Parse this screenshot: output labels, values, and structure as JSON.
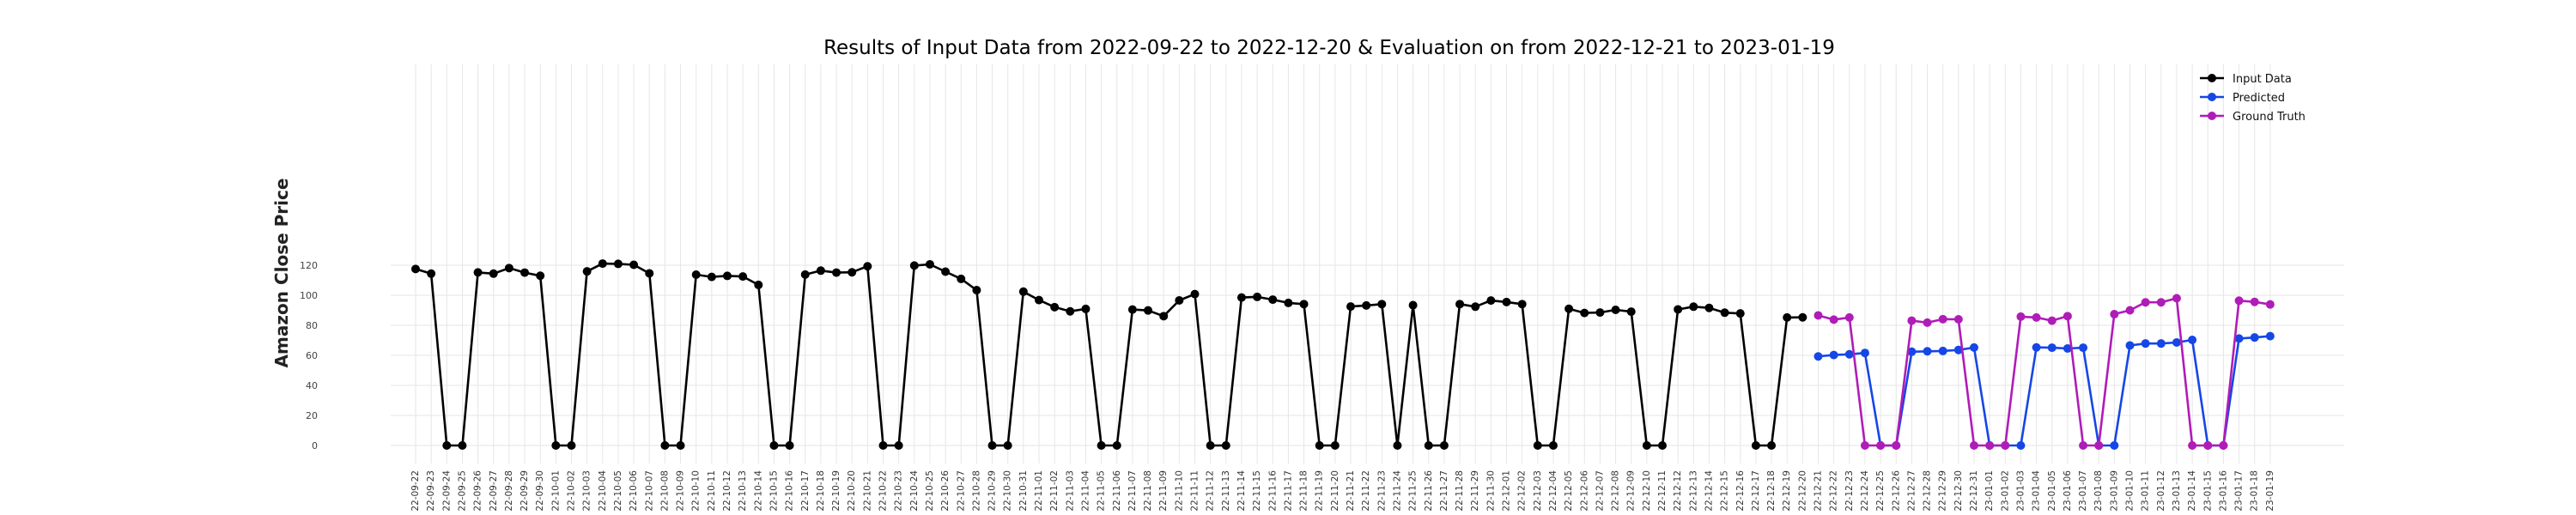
{
  "chart_data": {
    "type": "line",
    "title": "Results of Input Data from 2022-09-22 to 2022-12-20 & Evaluation on from 2022-12-21 to 2023-01-19",
    "xlabel": "",
    "ylabel": "Amazon Close Price",
    "ylim": [
      -8,
      128
    ],
    "yticks": [
      0,
      20,
      40,
      60,
      80,
      100,
      120
    ],
    "grid": true,
    "legend_position": "top-right",
    "colors": {
      "input": "#000000",
      "predicted": "#1546e6",
      "truth": "#b01cb8"
    },
    "series": [
      {
        "name": "Input Data",
        "color": "#000000",
        "x": [
          "2022-09-22",
          "2022-09-23",
          "2022-09-24",
          "2022-09-25",
          "2022-09-26",
          "2022-09-27",
          "2022-09-28",
          "2022-09-29",
          "2022-09-30",
          "2022-10-01",
          "2022-10-02",
          "2022-10-03",
          "2022-10-04",
          "2022-10-05",
          "2022-10-06",
          "2022-10-07",
          "2022-10-08",
          "2022-10-09",
          "2022-10-10",
          "2022-10-11",
          "2022-10-12",
          "2022-10-13",
          "2022-10-14",
          "2022-10-15",
          "2022-10-16",
          "2022-10-17",
          "2022-10-18",
          "2022-10-19",
          "2022-10-20",
          "2022-10-21",
          "2022-10-22",
          "2022-10-23",
          "2022-10-24",
          "2022-10-25",
          "2022-10-26",
          "2022-10-27",
          "2022-10-28",
          "2022-10-29",
          "2022-10-30",
          "2022-10-31",
          "2022-11-01",
          "2022-11-02",
          "2022-11-03",
          "2022-11-04",
          "2022-11-05",
          "2022-11-06",
          "2022-11-07",
          "2022-11-08",
          "2022-11-09",
          "2022-11-10",
          "2022-11-11",
          "2022-11-12",
          "2022-11-13",
          "2022-11-14",
          "2022-11-15",
          "2022-11-16",
          "2022-11-17",
          "2022-11-18",
          "2022-11-19",
          "2022-11-20",
          "2022-11-21",
          "2022-11-22",
          "2022-11-23",
          "2022-11-24",
          "2022-11-25",
          "2022-11-26",
          "2022-11-27",
          "2022-11-28",
          "2022-11-29",
          "2022-11-30",
          "2022-12-01",
          "2022-12-02",
          "2022-12-03",
          "2022-12-04",
          "2022-12-05",
          "2022-12-06",
          "2022-12-07",
          "2022-12-08",
          "2022-12-09",
          "2022-12-10",
          "2022-12-11",
          "2022-12-12",
          "2022-12-13",
          "2022-12-14",
          "2022-12-15",
          "2022-12-16",
          "2022-12-17",
          "2022-12-18",
          "2022-12-19",
          "2022-12-20"
        ],
        "values": [
          117.5,
          114.4,
          0,
          0,
          115.2,
          114.4,
          118.1,
          115.1,
          113.0,
          0,
          0,
          115.9,
          121.1,
          120.9,
          120.3,
          114.6,
          0,
          0,
          113.7,
          112.2,
          112.9,
          112.5,
          106.9,
          0,
          0,
          113.8,
          116.4,
          115.1,
          115.3,
          119.3,
          0,
          0,
          119.8,
          120.6,
          115.7,
          110.9,
          103.4,
          0,
          0,
          102.4,
          96.8,
          92.1,
          89.3,
          90.9,
          0,
          0,
          90.5,
          89.9,
          86.1,
          96.6,
          100.8,
          0,
          0,
          98.5,
          98.9,
          97.1,
          94.9,
          94.1,
          0,
          0,
          92.5,
          93.2,
          94.1,
          0,
          93.4,
          0,
          0,
          94.1,
          92.4,
          96.5,
          95.5,
          94.1,
          0,
          0,
          91.0,
          88.2,
          88.5,
          90.3,
          89.1,
          0,
          0,
          90.6,
          92.4,
          91.6,
          88.4,
          87.9,
          0,
          0,
          85.2,
          85.3
        ]
      },
      {
        "name": "Predicted",
        "color": "#1546e6",
        "x": [
          "2022-12-21",
          "2022-12-22",
          "2022-12-23",
          "2022-12-24",
          "2022-12-25",
          "2022-12-26",
          "2022-12-27",
          "2022-12-28",
          "2022-12-29",
          "2022-12-30",
          "2022-12-31",
          "2023-01-01",
          "2023-01-02",
          "2023-01-03",
          "2023-01-04",
          "2023-01-05",
          "2023-01-06",
          "2023-01-07",
          "2023-01-08",
          "2023-01-09",
          "2023-01-10",
          "2023-01-11",
          "2023-01-12",
          "2023-01-13",
          "2023-01-14",
          "2023-01-15",
          "2023-01-16",
          "2023-01-17",
          "2023-01-18",
          "2023-01-19"
        ],
        "values": [
          59.3,
          60.2,
          60.7,
          61.6,
          0,
          0,
          62.4,
          62.7,
          62.9,
          63.6,
          65.2,
          0,
          0,
          0,
          65.3,
          65.1,
          64.6,
          65.1,
          0,
          0,
          66.6,
          67.9,
          67.9,
          68.6,
          70.3,
          0,
          0,
          71.2,
          71.9,
          72.8
        ]
      },
      {
        "name": "Ground Truth",
        "color": "#b01cb8",
        "x": [
          "2022-12-21",
          "2022-12-22",
          "2022-12-23",
          "2022-12-24",
          "2022-12-25",
          "2022-12-26",
          "2022-12-27",
          "2022-12-28",
          "2022-12-29",
          "2022-12-30",
          "2022-12-31",
          "2023-01-01",
          "2023-01-02",
          "2023-01-03",
          "2023-01-04",
          "2023-01-05",
          "2023-01-06",
          "2023-01-07",
          "2023-01-08",
          "2023-01-09",
          "2023-01-10",
          "2023-01-11",
          "2023-01-12",
          "2023-01-13",
          "2023-01-14",
          "2023-01-15",
          "2023-01-16",
          "2023-01-17",
          "2023-01-18",
          "2023-01-19"
        ],
        "values": [
          86.6,
          83.8,
          85.2,
          0,
          0,
          0,
          83.1,
          81.8,
          84.1,
          84.0,
          0,
          0,
          0,
          85.8,
          85.2,
          83.1,
          86.1,
          0,
          0,
          87.4,
          90.0,
          95.3,
          95.3,
          98.0,
          0,
          0,
          0,
          96.4,
          95.6,
          93.9
        ]
      }
    ]
  }
}
